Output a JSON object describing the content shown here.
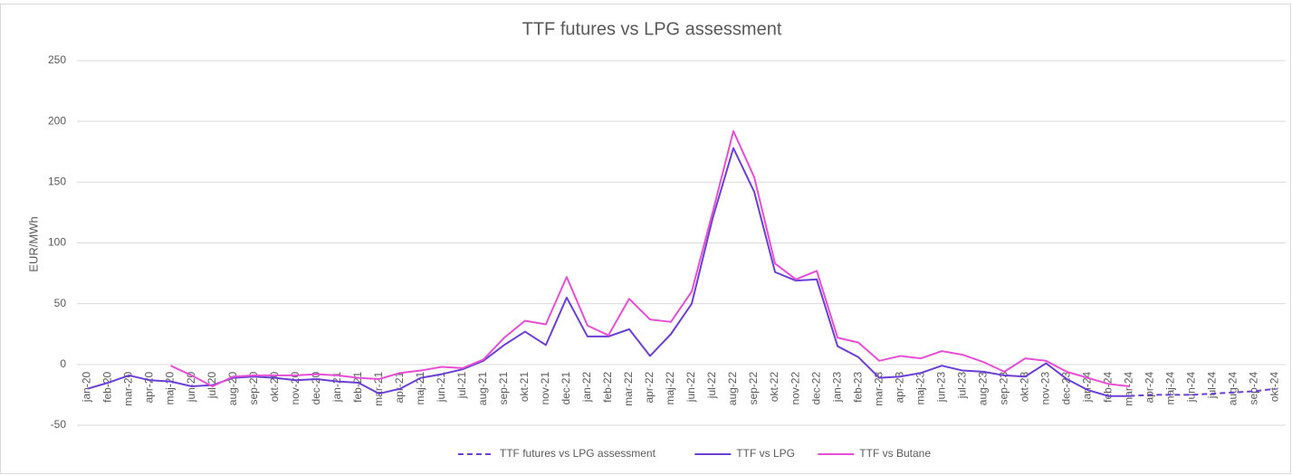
{
  "chart_data": {
    "type": "line",
    "title": "TTF futures vs LPG assessment",
    "y_label": "EUR/MWh",
    "categories": [
      "jan-20",
      "feb-20",
      "mar-20",
      "apr-20",
      "maj-20",
      "jun-20",
      "jul-20",
      "aug-20",
      "sep-20",
      "okt-20",
      "nov-20",
      "dec-20",
      "jan-21",
      "feb-21",
      "mar-21",
      "apr-21",
      "maj-21",
      "jun-21",
      "jul-21",
      "aug-21",
      "sep-21",
      "okt-21",
      "nov-21",
      "dec-21",
      "jan-22",
      "feb-22",
      "mar-22",
      "apr-22",
      "maj-22",
      "jun-22",
      "jul-22",
      "aug-22",
      "sep-22",
      "okt-22",
      "nov-22",
      "dec-22",
      "jan-23",
      "feb-23",
      "mar-23",
      "apr-23",
      "maj-23",
      "jun-23",
      "jul-23",
      "aug-23",
      "sep-23",
      "okt-23",
      "nov-23",
      "dec-23",
      "jan-24",
      "feb-24",
      "mar-24",
      "apr-24",
      "maj-24",
      "jun-24",
      "jul-24",
      "aug-24",
      "sep-24",
      "okt-24"
    ],
    "series": [
      {
        "name": "TTF futures vs LPG assessment",
        "color": "#6a3fd4",
        "dash": true,
        "values": [
          null,
          null,
          null,
          null,
          null,
          null,
          null,
          null,
          null,
          null,
          null,
          null,
          null,
          null,
          null,
          null,
          null,
          null,
          null,
          null,
          null,
          null,
          null,
          null,
          null,
          null,
          null,
          null,
          null,
          null,
          null,
          null,
          null,
          null,
          null,
          null,
          null,
          null,
          null,
          null,
          null,
          null,
          null,
          null,
          null,
          null,
          null,
          null,
          null,
          null,
          -26,
          -25,
          -25,
          -25,
          -24,
          -23,
          -22,
          -20
        ]
      },
      {
        "name": "TTF vs LPG",
        "color": "#6a3fd4",
        "dash": false,
        "values": [
          -20,
          -15,
          -9,
          -13,
          -14,
          -18,
          -17,
          -11,
          -10,
          -11,
          -13,
          -12,
          -14,
          -15,
          -24,
          -20,
          -11,
          -8,
          -4,
          3,
          16,
          27,
          16,
          55,
          23,
          23,
          29,
          7,
          25,
          50,
          120,
          178,
          142,
          76,
          69,
          70,
          15,
          6,
          -11,
          -10,
          -7,
          -1,
          -5,
          -6,
          -9,
          -10,
          1,
          -12,
          -21,
          -26,
          -26,
          null,
          null,
          null,
          null,
          null,
          null,
          null
        ]
      },
      {
        "name": "TTF vs Butane",
        "color": "#e64fd3",
        "dash": false,
        "values": [
          null,
          null,
          null,
          null,
          -1,
          -9,
          -18,
          -10,
          -9,
          -9,
          -9,
          -8,
          -9,
          -11,
          -12,
          -7,
          -5,
          -2,
          -3,
          4,
          22,
          36,
          33,
          72,
          32,
          24,
          54,
          37,
          35,
          60,
          125,
          192,
          154,
          83,
          70,
          77,
          22,
          18,
          3,
          7,
          5,
          11,
          8,
          2,
          -6,
          5,
          3,
          -6,
          -11,
          -16,
          -18,
          null,
          null,
          null,
          null,
          null,
          null,
          null
        ]
      }
    ],
    "ylim": [
      -50,
      250
    ],
    "yticks": [
      -50,
      0,
      50,
      100,
      150,
      200,
      250
    ],
    "grid": true,
    "legend": "bottom"
  }
}
